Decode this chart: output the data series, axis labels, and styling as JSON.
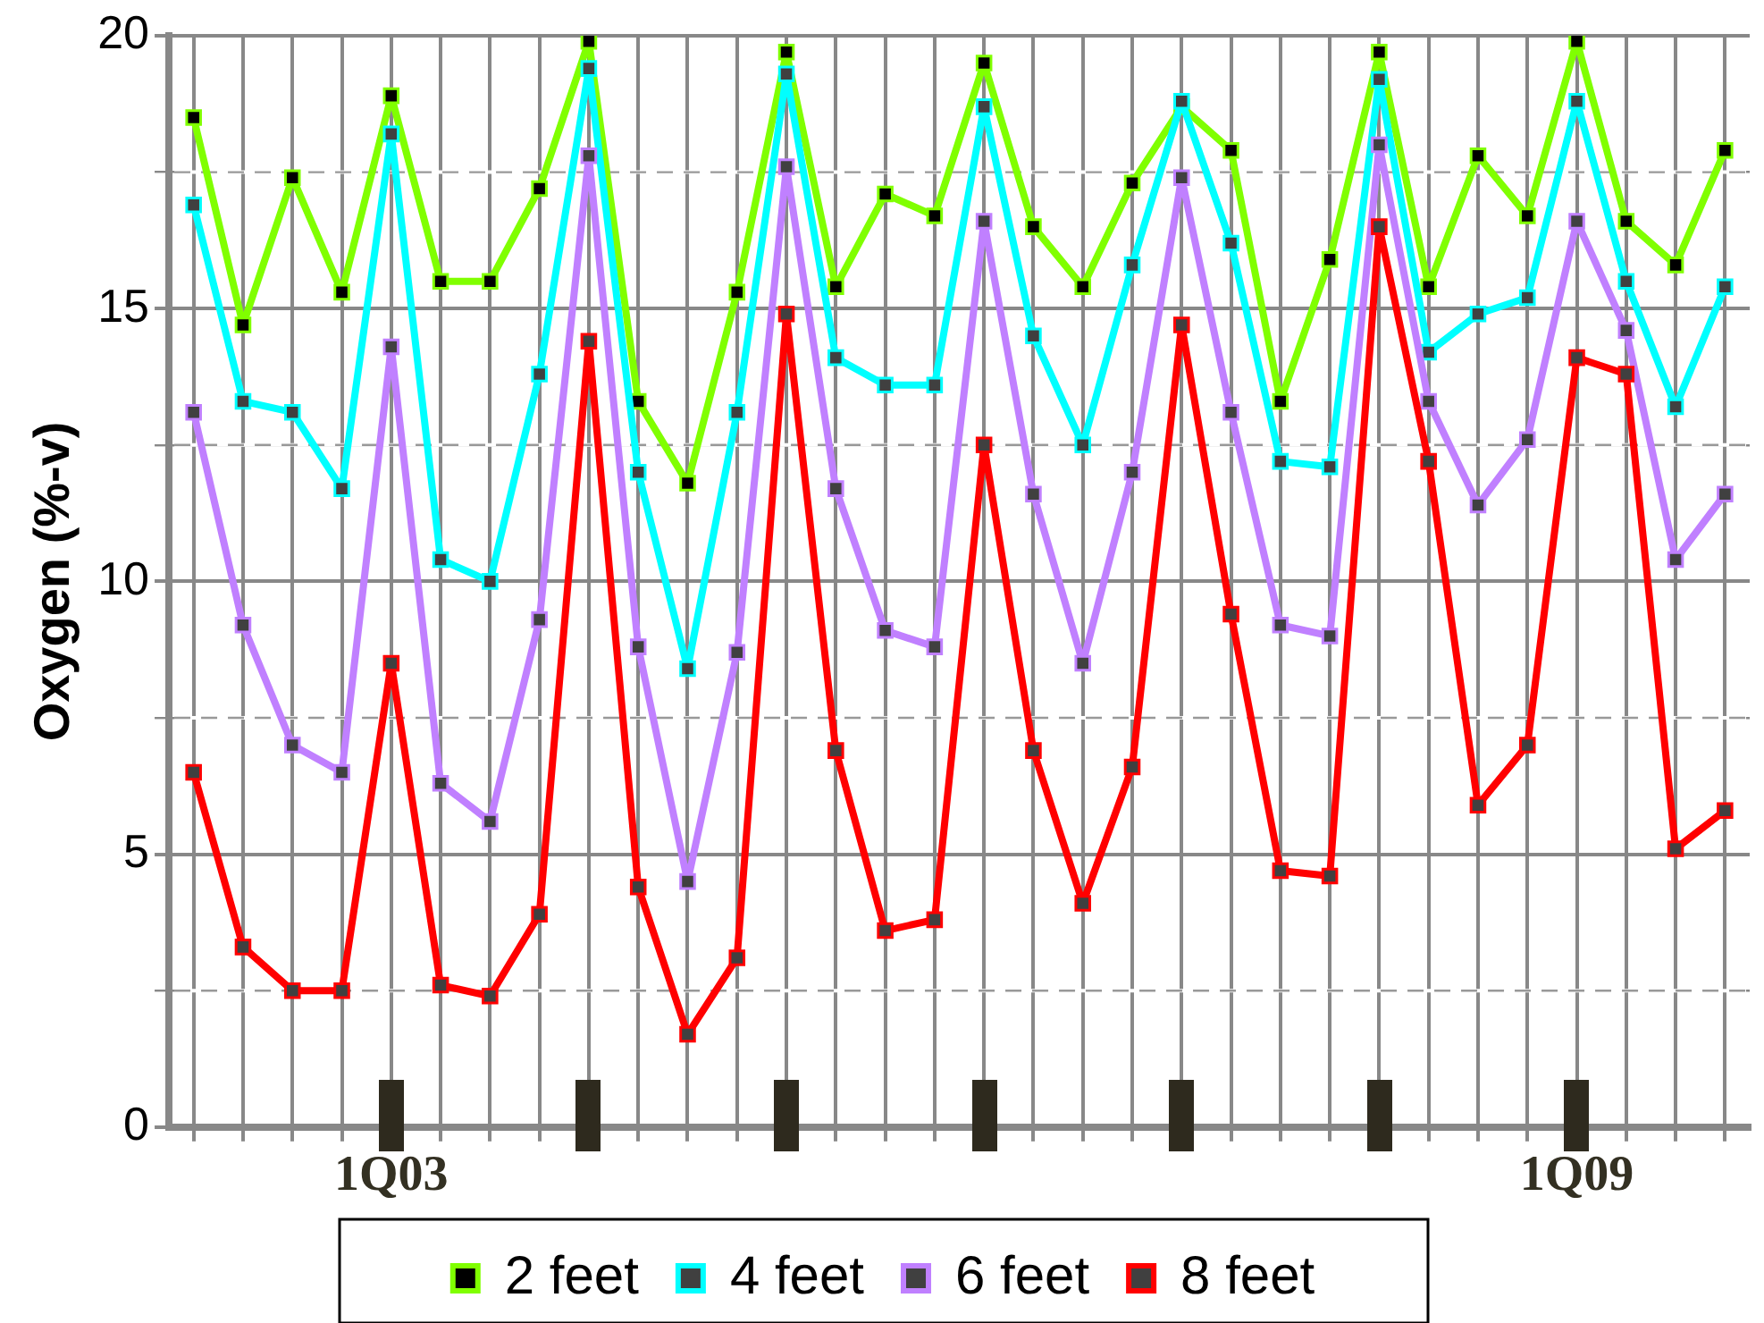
{
  "chart_data": {
    "type": "line",
    "ylabel": "Oxygen (%-v)",
    "categories": [
      null,
      null,
      null,
      null,
      "1Q03",
      null,
      null,
      null,
      null,
      null,
      null,
      null,
      null,
      null,
      null,
      null,
      null,
      null,
      null,
      null,
      null,
      null,
      null,
      null,
      null,
      null,
      null,
      null,
      "1Q09",
      null,
      null,
      null
    ],
    "series": [
      {
        "name": "2 feet",
        "color": "#80ff00",
        "values": [
          18.5,
          14.7,
          17.4,
          15.3,
          18.9,
          15.5,
          15.5,
          17.2,
          19.9,
          13.3,
          11.8,
          15.3,
          19.7,
          15.4,
          17.1,
          16.7,
          19.5,
          16.5,
          15.4,
          17.3,
          18.7,
          17.9,
          13.3,
          15.9,
          19.7,
          15.4,
          17.8,
          16.7,
          19.9,
          16.6,
          15.8,
          17.9
        ]
      },
      {
        "name": "4 feet",
        "color": "#00ffff",
        "values": [
          16.9,
          13.3,
          13.1,
          11.7,
          18.2,
          10.4,
          10.0,
          13.8,
          19.4,
          12.0,
          8.4,
          13.1,
          19.3,
          14.1,
          13.6,
          13.6,
          18.7,
          14.5,
          12.5,
          15.8,
          18.8,
          16.2,
          12.2,
          12.1,
          19.2,
          14.2,
          14.9,
          15.2,
          18.8,
          15.5,
          13.2,
          15.4
        ]
      },
      {
        "name": "6 feet",
        "color": "#c080ff",
        "values": [
          13.1,
          9.2,
          7.0,
          6.5,
          14.3,
          6.3,
          5.6,
          9.3,
          17.8,
          8.8,
          4.5,
          8.7,
          17.6,
          11.7,
          9.1,
          8.8,
          16.6,
          11.6,
          8.5,
          12.0,
          17.4,
          13.1,
          9.2,
          9.0,
          18.0,
          13.3,
          11.4,
          12.6,
          16.6,
          14.6,
          10.4,
          11.6
        ]
      },
      {
        "name": "8 feet",
        "color": "#ff0000",
        "values": [
          6.5,
          3.3,
          2.5,
          2.5,
          8.5,
          2.6,
          2.4,
          3.9,
          14.4,
          4.4,
          1.7,
          3.1,
          14.9,
          6.9,
          3.6,
          3.8,
          12.5,
          6.9,
          4.1,
          6.6,
          14.7,
          9.4,
          4.7,
          4.6,
          16.5,
          12.2,
          5.9,
          7.0,
          14.1,
          13.8,
          5.1,
          5.8
        ]
      }
    ],
    "ylim": [
      0,
      20
    ],
    "yticks": [
      0,
      {
        "value": 2.5,
        "label": null
      },
      5,
      {
        "value": 7.5,
        "label": null
      },
      10,
      {
        "value": 12.5,
        "label": null
      },
      15,
      {
        "value": 17.5,
        "label": null
      },
      20
    ],
    "grid": true,
    "legend": "bottom",
    "marker": "square",
    "line_style": "solid"
  }
}
